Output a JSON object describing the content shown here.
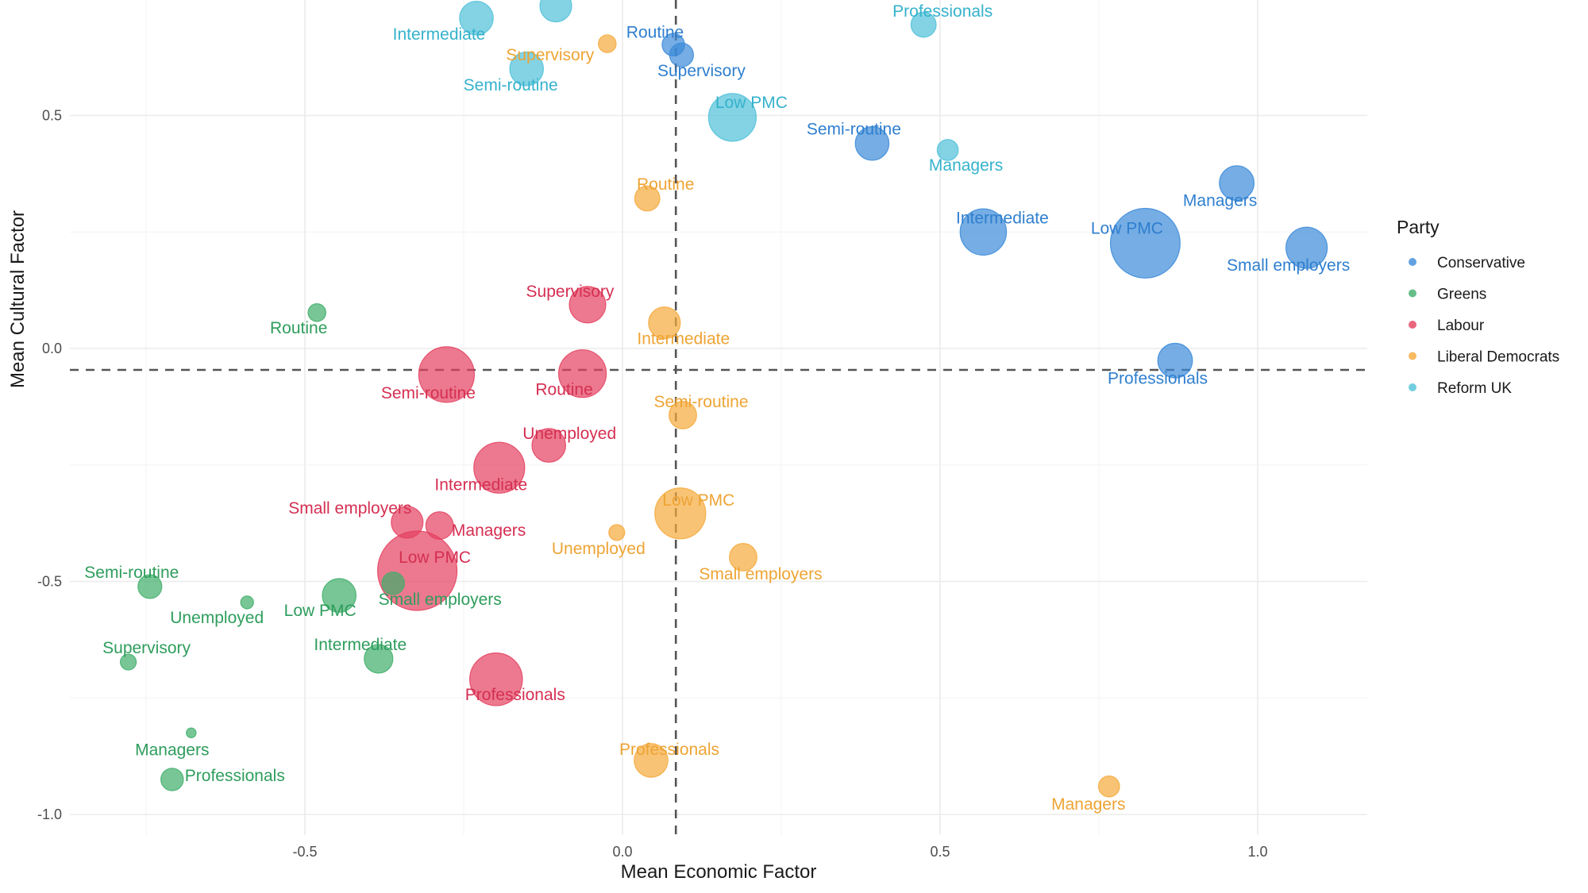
{
  "chart_data": {
    "type": "scatter",
    "title": "",
    "xlabel": "Mean Economic Factor",
    "ylabel": "Mean Cultural Factor",
    "xlim": [
      -0.88,
      1.18
    ],
    "ylim": [
      -1.06,
      0.75
    ],
    "x_ticks": [
      -0.5,
      0.0,
      0.5,
      1.0
    ],
    "x_tick_labels": [
      "-0.5",
      "0.0",
      "0.5",
      "1.0"
    ],
    "y_ticks": [
      -1.0,
      -0.5,
      0.0,
      0.5
    ],
    "y_tick_labels": [
      "-1.0",
      "-0.5",
      "0.0",
      "0.5"
    ],
    "grid": true,
    "reference_lines": {
      "x": 0.084,
      "y": -0.046,
      "style": "dashed"
    },
    "legend": {
      "title": "Party",
      "position": "right"
    },
    "size_note": "bubble area proportional to relative group size (unlabelled)",
    "series": [
      {
        "name": "Conservative",
        "color": "#3b8ad9",
        "points": [
          {
            "label": "Routine",
            "x": 0.08,
            "y": 0.652,
            "size": 8
          },
          {
            "label": "Supervisory",
            "x": 0.093,
            "y": 0.63,
            "size": 9
          },
          {
            "label": "Semi-routine",
            "x": 0.393,
            "y": 0.44,
            "size": 18
          },
          {
            "label": "Intermediate",
            "x": 0.568,
            "y": 0.25,
            "size": 34
          },
          {
            "label": "Low PMC",
            "x": 0.823,
            "y": 0.226,
            "size": 77
          },
          {
            "label": "Managers",
            "x": 0.967,
            "y": 0.355,
            "size": 19
          },
          {
            "label": "Small employers",
            "x": 1.077,
            "y": 0.216,
            "size": 27
          },
          {
            "label": "Professionals",
            "x": 0.87,
            "y": -0.026,
            "size": 19
          }
        ]
      },
      {
        "name": "Greens",
        "color": "#3fae6a",
        "points": [
          {
            "label": "Routine",
            "x": -0.481,
            "y": 0.077,
            "size": 5
          },
          {
            "label": "Semi-routine",
            "x": -0.744,
            "y": -0.511,
            "size": 9
          },
          {
            "label": "Unemployed",
            "x": -0.591,
            "y": -0.545,
            "size": 2.6
          },
          {
            "label": "Low PMC",
            "x": -0.446,
            "y": -0.53,
            "size": 18
          },
          {
            "label": "Small employers",
            "x": -0.361,
            "y": -0.504,
            "size": 8
          },
          {
            "label": "Supervisory",
            "x": -0.778,
            "y": -0.673,
            "size": 4
          },
          {
            "label": "Intermediate",
            "x": -0.384,
            "y": -0.666,
            "size": 13
          },
          {
            "label": "Managers",
            "x": -0.679,
            "y": -0.825,
            "size": 1.5
          },
          {
            "label": "Professionals",
            "x": -0.709,
            "y": -0.925,
            "size": 8
          }
        ]
      },
      {
        "name": "Labour",
        "color": "#e4405f",
        "points": [
          {
            "label": "Supervisory",
            "x": -0.055,
            "y": 0.094,
            "size": 21
          },
          {
            "label": "Semi-routine",
            "x": -0.277,
            "y": -0.056,
            "size": 49
          },
          {
            "label": "Routine",
            "x": -0.063,
            "y": -0.054,
            "size": 36
          },
          {
            "label": "Unemployed",
            "x": -0.116,
            "y": -0.208,
            "size": 18
          },
          {
            "label": "Intermediate",
            "x": -0.194,
            "y": -0.256,
            "size": 41
          },
          {
            "label": "Small employers",
            "x": -0.339,
            "y": -0.373,
            "size": 16
          },
          {
            "label": "Managers",
            "x": -0.288,
            "y": -0.38,
            "size": 12
          },
          {
            "label": "Low PMC",
            "x": -0.323,
            "y": -0.477,
            "size": 100
          },
          {
            "label": "Professionals",
            "x": -0.199,
            "y": -0.71,
            "size": 44
          }
        ]
      },
      {
        "name": "Liberal Democrats",
        "color": "#f5a93a",
        "points": [
          {
            "label": "Supervisory",
            "x": -0.024,
            "y": 0.654,
            "size": 5
          },
          {
            "label": "Routine",
            "x": 0.039,
            "y": 0.322,
            "size": 10
          },
          {
            "label": "Intermediate",
            "x": 0.066,
            "y": 0.055,
            "size": 16
          },
          {
            "label": "Semi-routine",
            "x": 0.095,
            "y": -0.143,
            "size": 12
          },
          {
            "label": "Low PMC",
            "x": 0.091,
            "y": -0.354,
            "size": 41
          },
          {
            "label": "Unemployed",
            "x": -0.009,
            "y": -0.395,
            "size": 4
          },
          {
            "label": "Small employers",
            "x": 0.19,
            "y": -0.448,
            "size": 12
          },
          {
            "label": "Professionals",
            "x": 0.045,
            "y": -0.884,
            "size": 18
          },
          {
            "label": "Managers",
            "x": 0.766,
            "y": -0.94,
            "size": 7
          }
        ]
      },
      {
        "name": "Reform UK",
        "color": "#4fc0d8",
        "points": [
          {
            "label": "Intermediate",
            "x": -0.23,
            "y": 0.709,
            "size": 18
          },
          {
            "label": "",
            "x": -0.105,
            "y": 0.735,
            "size": 16
          },
          {
            "label": "Semi-routine",
            "x": -0.151,
            "y": 0.6,
            "size": 18
          },
          {
            "label": "Low PMC",
            "x": 0.173,
            "y": 0.496,
            "size": 36
          },
          {
            "label": "Managers",
            "x": 0.512,
            "y": 0.426,
            "size": 7
          },
          {
            "label": "Professionals",
            "x": 0.474,
            "y": 0.695,
            "size": 10
          }
        ]
      }
    ]
  },
  "label_colors": {
    "Conservative": "#2f7fcf",
    "Greens": "#2e9d5c",
    "Labour": "#d52f52",
    "Liberal Democrats": "#eea434",
    "Reform UK": "#35b2cc"
  }
}
